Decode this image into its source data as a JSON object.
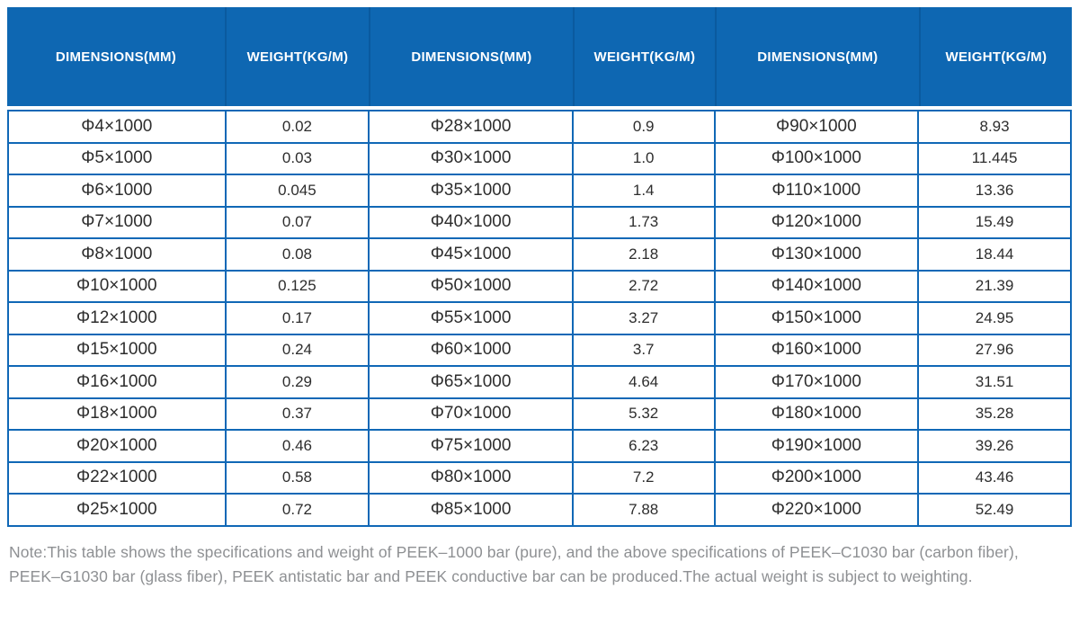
{
  "chart_data": {
    "type": "table",
    "columns": [
      "DIMENSIONS(MM)",
      "WEIGHT(KG/M)",
      "DIMENSIONS(MM)",
      "WEIGHT(KG/M)",
      "DIMENSIONS(MM)",
      "WEIGHT(KG/M)"
    ],
    "rows": [
      [
        "Φ4×1000",
        "0.02",
        "Φ28×1000",
        "0.9",
        "Φ90×1000",
        "8.93"
      ],
      [
        "Φ5×1000",
        "0.03",
        "Φ30×1000",
        "1.0",
        "Φ100×1000",
        "11.445"
      ],
      [
        "Φ6×1000",
        "0.045",
        "Φ35×1000",
        "1.4",
        "Φ110×1000",
        "13.36"
      ],
      [
        "Φ7×1000",
        "0.07",
        "Φ40×1000",
        "1.73",
        "Φ120×1000",
        "15.49"
      ],
      [
        "Φ8×1000",
        "0.08",
        "Φ45×1000",
        "2.18",
        "Φ130×1000",
        "18.44"
      ],
      [
        "Φ10×1000",
        "0.125",
        "Φ50×1000",
        "2.72",
        "Φ140×1000",
        "21.39"
      ],
      [
        "Φ12×1000",
        "0.17",
        "Φ55×1000",
        "3.27",
        "Φ150×1000",
        "24.95"
      ],
      [
        "Φ15×1000",
        "0.24",
        "Φ60×1000",
        "3.7",
        "Φ160×1000",
        "27.96"
      ],
      [
        "Φ16×1000",
        "0.29",
        "Φ65×1000",
        "4.64",
        "Φ170×1000",
        "31.51"
      ],
      [
        "Φ18×1000",
        "0.37",
        "Φ70×1000",
        "5.32",
        "Φ180×1000",
        "35.28"
      ],
      [
        "Φ20×1000",
        "0.46",
        "Φ75×1000",
        "6.23",
        "Φ190×1000",
        "39.26"
      ],
      [
        "Φ22×1000",
        "0.58",
        "Φ80×1000",
        "7.2",
        "Φ200×1000",
        "43.46"
      ],
      [
        "Φ25×1000",
        "0.72",
        "Φ85×1000",
        "7.88",
        "Φ220×1000",
        "52.49"
      ]
    ],
    "title": "",
    "layout_hints": {
      "header_rows": 1,
      "column_pairs": 3,
      "grid": "on"
    }
  },
  "note": {
    "line1": "Note:This table shows the specifications and weight of PEEK–1000 bar (pure), and the above specifications of PEEK–C1030 bar (carbon fiber),",
    "line2": "PEEK–G1030 bar (glass fiber), PEEK antistatic bar and PEEK conductive bar can be produced.The actual weight is subject to weighting."
  },
  "colors": {
    "header_bg": "#0e67b2",
    "header_separator": "#0a5a9f",
    "grid_line": "#1068b6",
    "body_text": "#2d2d2d",
    "note_text": "#8e9093"
  }
}
